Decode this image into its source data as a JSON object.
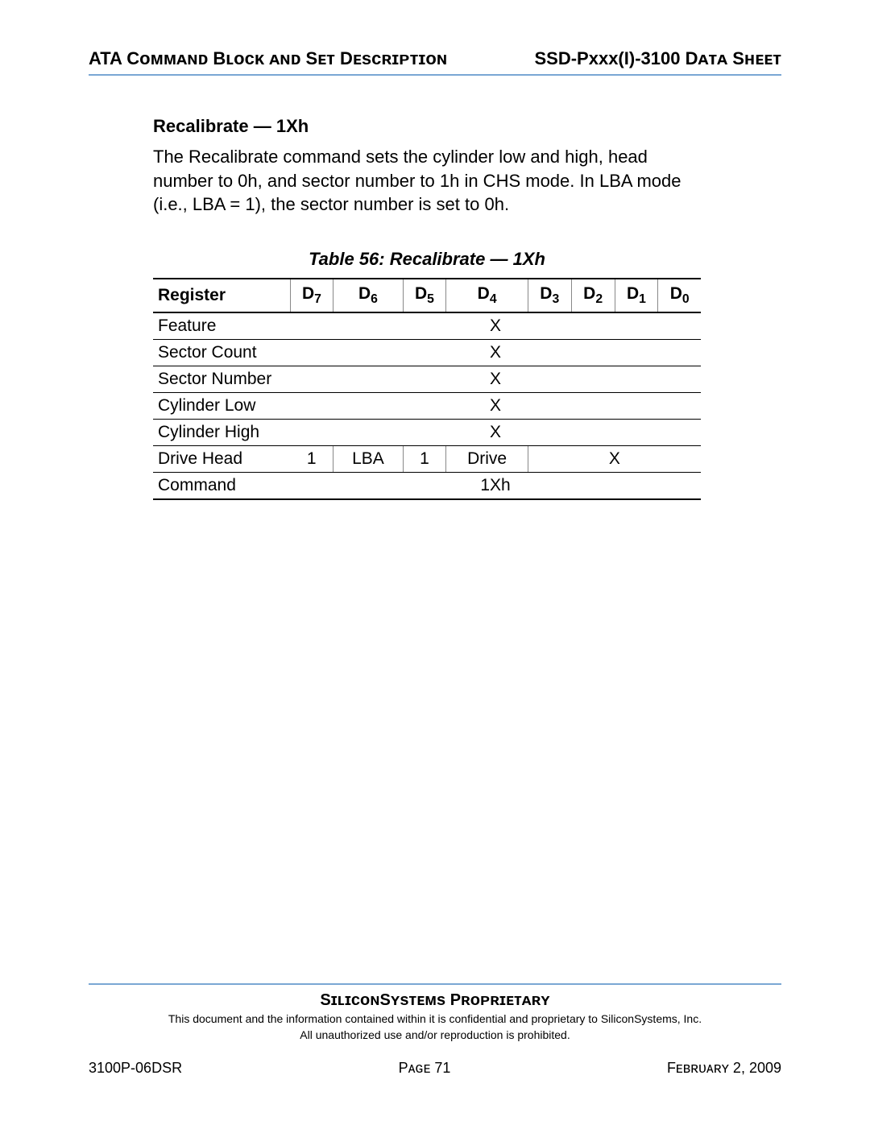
{
  "header": {
    "left": "ATA Cᴏᴍᴍᴀɴᴅ Bʟᴏᴄᴋ ᴀɴᴅ Sᴇᴛ Dᴇsᴄʀɪᴘᴛɪᴏɴ",
    "right": "SSD-Pxxx(I)-3100 Dᴀᴛᴀ Sʜᴇᴇᴛ"
  },
  "section": {
    "title": "Recalibrate — 1Xh",
    "body": "The Recalibrate command sets the cylinder low and high, head number to 0h, and sector number to 1h in CHS mode. In LBA mode (i.e., LBA = 1), the sector number is set to 0h."
  },
  "table": {
    "caption": "Table 56:  Recalibrate — 1Xh",
    "header": {
      "reg": "Register",
      "bits": [
        "7",
        "6",
        "5",
        "4",
        "3",
        "2",
        "1",
        "0"
      ],
      "prefix": "D"
    },
    "rows_single": [
      {
        "reg": "Feature",
        "val": "X"
      },
      {
        "reg": "Sector Count",
        "val": "X"
      },
      {
        "reg": "Sector Number",
        "val": "X"
      },
      {
        "reg": "Cylinder Low",
        "val": "X"
      },
      {
        "reg": "Cylinder High",
        "val": "X"
      }
    ],
    "drive_head": {
      "reg": "Drive Head",
      "d7": "1",
      "d6": "LBA",
      "d5": "1",
      "d4": "Drive",
      "rest": "X"
    },
    "command": {
      "reg": "Command",
      "val": "1Xh"
    }
  },
  "footer": {
    "proprietary": "SɪʟɪᴄᴏɴSʏsᴛᴇᴍs Pʀᴏᴘʀɪᴇᴛᴀʀʏ",
    "disclaimer1": "This document and the information contained within it is confidential and proprietary to SiliconSystems, Inc.",
    "disclaimer2": "All unauthorized use and/or reproduction is prohibited.",
    "left": "3100P-06DSR",
    "center": "Pᴀɢᴇ 71",
    "right": "Fᴇʙʀᴜᴀʀʏ 2, 2009"
  }
}
